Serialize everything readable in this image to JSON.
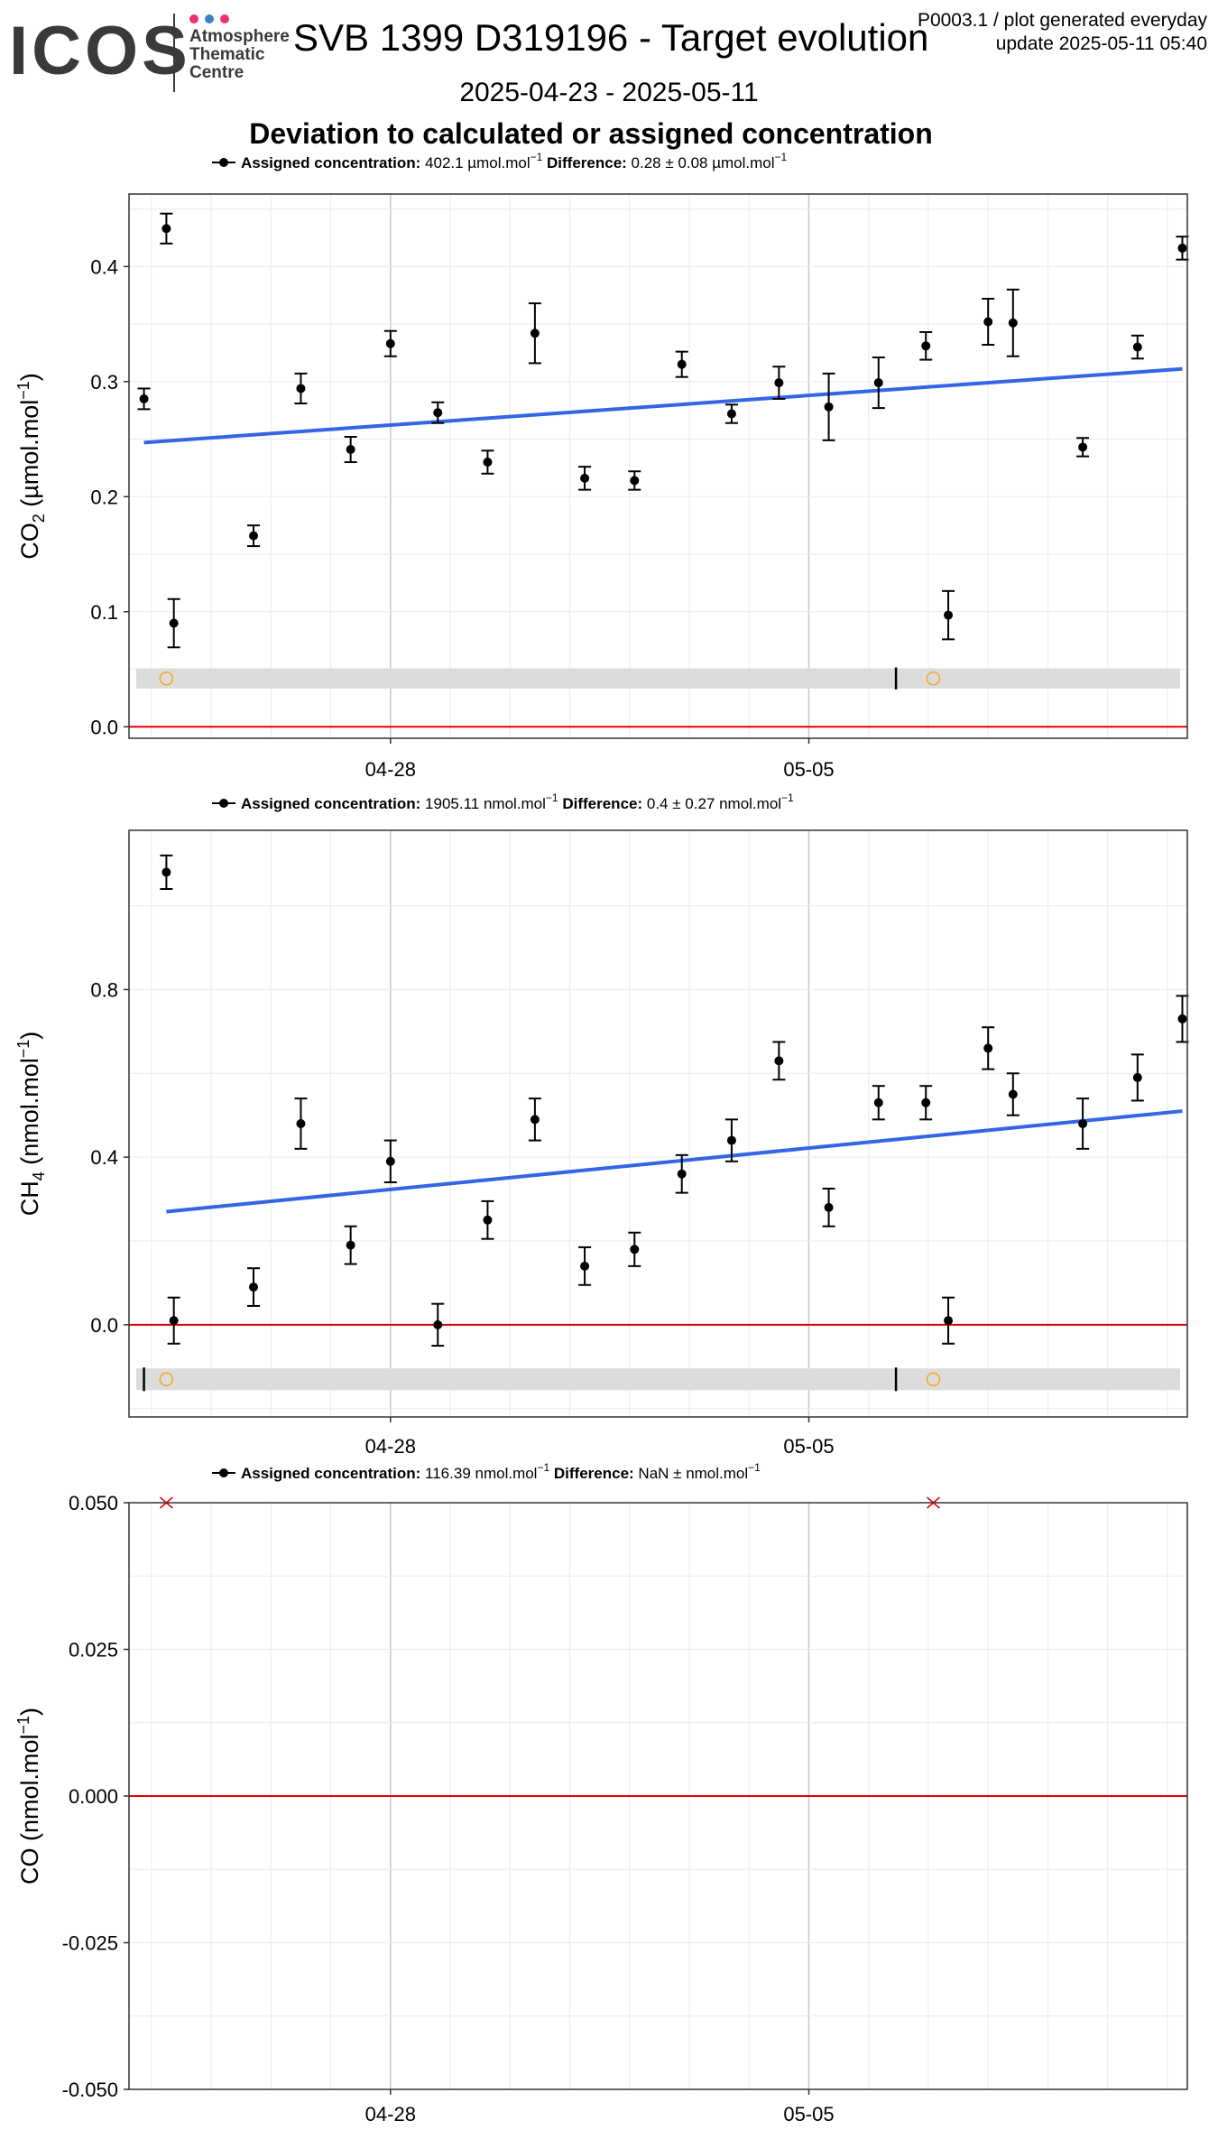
{
  "header": {
    "logo_text": "ICOS",
    "logo_subtitle": [
      "Atmosphere",
      "Thematic",
      "Centre"
    ],
    "logo_dot_colors": [
      "#e8336d",
      "#3b7fc4",
      "#e8336d"
    ],
    "title": "SVB 1399 D319196 - Target evolution",
    "date_range": "2025-04-23 - 2025-05-11",
    "subtitle": "Deviation to calculated or assigned concentration",
    "meta_line1": "P0003.1 / plot generated everyday",
    "meta_line2": "update  2025-05-11 05:40"
  },
  "colors": {
    "points": "#000000",
    "trend": "#3366e6",
    "zero_line": "#e60000",
    "flag_band": "#dcdcdc",
    "flag_circle": "#f5a623",
    "flag_cross": "#e60000"
  },
  "chart_data": [
    {
      "type": "scatter",
      "legend": {
        "assigned_label": "Assigned concentration:",
        "assigned_value": "402.1 µmol.mol",
        "assigned_exp": "−1",
        "difference_label": "Difference:",
        "difference_value": "0.28 ± 0.08 µmol.mol",
        "difference_exp": "−1"
      },
      "ylabel": "CO2 (µmol.mol−1)",
      "ylabel_main": "CO",
      "ylabel_sub": "2",
      "ylabel_rest": " (µmol.mol",
      "ylabel_sup": "−1",
      "ylabel_end": ")",
      "ylim": [
        -0.01,
        0.463
      ],
      "yticks": [
        "0.0",
        "0.1",
        "0.2",
        "0.3",
        "0.4"
      ],
      "xticks": [
        "04-28",
        "05-05"
      ],
      "xlim": [
        "2025-04-23 15:00",
        "2025-05-11 08:00"
      ],
      "points": [
        {
          "x": "2025-04-23 21:00",
          "y": 0.285,
          "err": 0.009
        },
        {
          "x": "2025-04-24 06:00",
          "y": 0.433,
          "err": 0.013
        },
        {
          "x": "2025-04-24 09:00",
          "y": 0.09,
          "err": 0.021
        },
        {
          "x": "2025-04-25 17:00",
          "y": 0.166,
          "err": 0.009
        },
        {
          "x": "2025-04-26 12:00",
          "y": 0.294,
          "err": 0.013
        },
        {
          "x": "2025-04-27 08:00",
          "y": 0.241,
          "err": 0.011
        },
        {
          "x": "2025-04-28 00:00",
          "y": 0.333,
          "err": 0.011
        },
        {
          "x": "2025-04-28 19:00",
          "y": 0.273,
          "err": 0.009
        },
        {
          "x": "2025-04-29 15:00",
          "y": 0.23,
          "err": 0.01
        },
        {
          "x": "2025-04-30 10:00",
          "y": 0.342,
          "err": 0.026
        },
        {
          "x": "2025-05-01 06:00",
          "y": 0.216,
          "err": 0.01
        },
        {
          "x": "2025-05-02 02:00",
          "y": 0.214,
          "err": 0.008
        },
        {
          "x": "2025-05-02 21:00",
          "y": 0.315,
          "err": 0.011
        },
        {
          "x": "2025-05-03 17:00",
          "y": 0.272,
          "err": 0.008
        },
        {
          "x": "2025-05-04 12:00",
          "y": 0.299,
          "err": 0.014
        },
        {
          "x": "2025-05-05 08:00",
          "y": 0.278,
          "err": 0.029
        },
        {
          "x": "2025-05-06 04:00",
          "y": 0.299,
          "err": 0.022
        },
        {
          "x": "2025-05-06 23:00",
          "y": 0.331,
          "err": 0.012
        },
        {
          "x": "2025-05-07 08:00",
          "y": 0.097,
          "err": 0.021
        },
        {
          "x": "2025-05-08 00:00",
          "y": 0.352,
          "err": 0.02
        },
        {
          "x": "2025-05-08 10:00",
          "y": 0.351,
          "err": 0.029
        },
        {
          "x": "2025-05-09 14:00",
          "y": 0.243,
          "err": 0.008
        },
        {
          "x": "2025-05-10 12:00",
          "y": 0.33,
          "err": 0.01
        },
        {
          "x": "2025-05-11 06:00",
          "y": 0.416,
          "err": 0.01
        }
      ],
      "trend": {
        "x": [
          "2025-04-23 21:00",
          "2025-05-11 06:00"
        ],
        "y": [
          0.247,
          0.311
        ]
      },
      "flag_band": {
        "y": 0.042,
        "circles": [
          "2025-04-24 06:00",
          "2025-05-07 02:00"
        ],
        "ticks": [
          "2025-05-06 11:00"
        ]
      }
    },
    {
      "type": "scatter",
      "legend": {
        "assigned_label": "Assigned concentration:",
        "assigned_value": "1905.11 nmol.mol",
        "assigned_exp": "−1",
        "difference_label": "Difference:",
        "difference_value": "0.4 ± 0.27 nmol.mol",
        "difference_exp": "−1"
      },
      "ylabel": "CH4 (nmol.mol−1)",
      "ylabel_main": "CH",
      "ylabel_sub": "4",
      "ylabel_rest": " (nmol.mol",
      "ylabel_sup": "−1",
      "ylabel_end": ")",
      "ylim": [
        -0.22,
        1.18
      ],
      "yticks": [
        "0.0",
        "0.4",
        "0.8"
      ],
      "xticks": [
        "04-28",
        "05-05"
      ],
      "xlim": [
        "2025-04-23 15:00",
        "2025-05-11 08:00"
      ],
      "points": [
        {
          "x": "2025-04-24 06:00",
          "y": 1.08,
          "err": 0.04
        },
        {
          "x": "2025-04-24 09:00",
          "y": 0.01,
          "err": 0.055
        },
        {
          "x": "2025-04-25 17:00",
          "y": 0.09,
          "err": 0.045
        },
        {
          "x": "2025-04-26 12:00",
          "y": 0.48,
          "err": 0.06
        },
        {
          "x": "2025-04-27 08:00",
          "y": 0.19,
          "err": 0.045
        },
        {
          "x": "2025-04-28 00:00",
          "y": 0.39,
          "err": 0.05
        },
        {
          "x": "2025-04-28 19:00",
          "y": 0.0,
          "err": 0.05
        },
        {
          "x": "2025-04-29 15:00",
          "y": 0.25,
          "err": 0.045
        },
        {
          "x": "2025-04-30 10:00",
          "y": 0.49,
          "err": 0.05
        },
        {
          "x": "2025-05-01 06:00",
          "y": 0.14,
          "err": 0.045
        },
        {
          "x": "2025-05-02 02:00",
          "y": 0.18,
          "err": 0.04
        },
        {
          "x": "2025-05-02 21:00",
          "y": 0.36,
          "err": 0.045
        },
        {
          "x": "2025-05-03 17:00",
          "y": 0.44,
          "err": 0.05
        },
        {
          "x": "2025-05-04 12:00",
          "y": 0.63,
          "err": 0.045
        },
        {
          "x": "2025-05-05 08:00",
          "y": 0.28,
          "err": 0.045
        },
        {
          "x": "2025-05-06 04:00",
          "y": 0.53,
          "err": 0.04
        },
        {
          "x": "2025-05-06 23:00",
          "y": 0.53,
          "err": 0.04
        },
        {
          "x": "2025-05-07 08:00",
          "y": 0.01,
          "err": 0.055
        },
        {
          "x": "2025-05-08 00:00",
          "y": 0.66,
          "err": 0.05
        },
        {
          "x": "2025-05-08 10:00",
          "y": 0.55,
          "err": 0.05
        },
        {
          "x": "2025-05-09 14:00",
          "y": 0.48,
          "err": 0.06
        },
        {
          "x": "2025-05-10 12:00",
          "y": 0.59,
          "err": 0.055
        },
        {
          "x": "2025-05-11 06:00",
          "y": 0.73,
          "err": 0.055
        }
      ],
      "trend": {
        "x": [
          "2025-04-24 06:00",
          "2025-05-11 06:00"
        ],
        "y": [
          0.27,
          0.51
        ]
      },
      "flag_band": {
        "y": -0.13,
        "circles": [
          "2025-04-24 06:00",
          "2025-05-07 02:00"
        ],
        "ticks": [
          "2025-04-23 21:00",
          "2025-05-06 11:00"
        ]
      }
    },
    {
      "type": "scatter",
      "legend": {
        "assigned_label": "Assigned concentration:",
        "assigned_value": "116.39 nmol.mol",
        "assigned_exp": "−1",
        "difference_label": "Difference:",
        "difference_value": "NaN ±  nmol.mol",
        "difference_exp": "−1"
      },
      "ylabel": "CO (nmol.mol−1)",
      "ylabel_main": "CO",
      "ylabel_sub": "",
      "ylabel_rest": " (nmol.mol",
      "ylabel_sup": "−1",
      "ylabel_end": ")",
      "ylim": [
        -0.05,
        0.05
      ],
      "yticks": [
        "-0.050",
        "-0.025",
        "0.000",
        "0.025",
        "0.050"
      ],
      "xticks": [
        "04-28",
        "05-05"
      ],
      "xlim": [
        "2025-04-23 15:00",
        "2025-05-11 08:00"
      ],
      "points": [],
      "trend": null,
      "crosses": [
        {
          "x": "2025-04-24 06:00",
          "y": 0.05
        },
        {
          "x": "2025-05-07 02:00",
          "y": 0.05
        }
      ]
    }
  ]
}
